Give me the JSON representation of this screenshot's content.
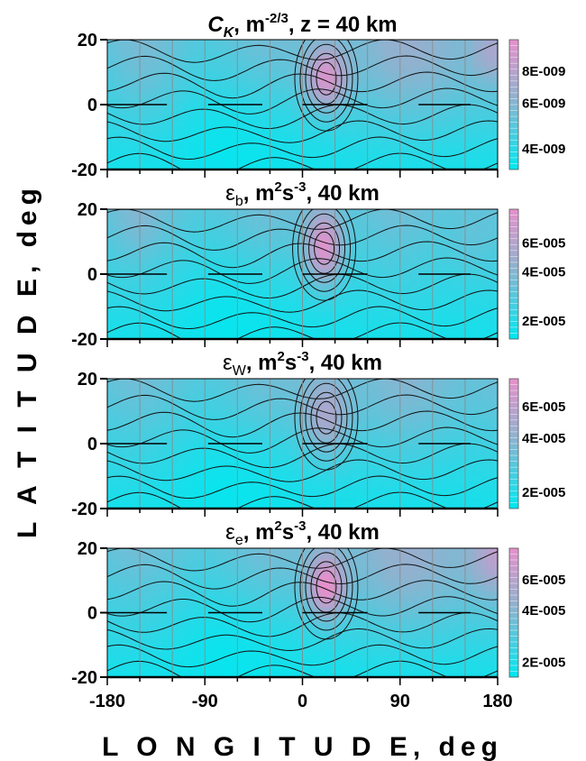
{
  "chart_data": [
    {
      "type": "heatmap",
      "title": "C_K, m^-2/3, z = 40 km",
      "title_parts": {
        "symbol": "C",
        "subscript": "K",
        "rest": ", m",
        "superscript": "-2/3",
        "tail": ", z = 40 km"
      },
      "xlabel": "L O N G I T U D E, deg",
      "ylabel": "L A T I T U D E, deg",
      "xlim": [
        -180,
        180
      ],
      "ylim": [
        -20,
        20
      ],
      "x_ticks": [
        "-180",
        "-90",
        "0",
        "90",
        "180"
      ],
      "y_ticks": [
        "20",
        "0",
        "-20"
      ],
      "colorbar": {
        "min": 4e-09,
        "max": 8.8e-09,
        "tick_values": [
          8e-09,
          6e-09,
          4e-09
        ],
        "tick_labels": [
          "8E-009",
          "6E-009",
          "4E-009"
        ]
      },
      "maximum": {
        "lon": 22,
        "lat": 8
      }
    },
    {
      "type": "heatmap",
      "title": "εb, m2s-3, 40 km",
      "title_parts": {
        "symbol": "ε",
        "subscript": "b",
        "rest": ", m",
        "superscript": "2",
        "mid": "s",
        "superscript2": "-3",
        "tail": ", 40 km"
      },
      "xlim": [
        -180,
        180
      ],
      "ylim": [
        -20,
        20
      ],
      "y_ticks": [
        "20",
        "0",
        "-20"
      ],
      "colorbar": {
        "min": 2e-05,
        "max": 7.5e-05,
        "tick_values": [
          6e-05,
          4e-05,
          2e-05
        ],
        "tick_labels": [
          "6E-005",
          "4E-005",
          "2E-005"
        ]
      },
      "maximum": {
        "lon": 20,
        "lat": 8
      }
    },
    {
      "type": "heatmap",
      "title": "εW, m2s-3, 40 km",
      "title_parts": {
        "symbol": "ε",
        "subscript": "W",
        "rest": ", m",
        "superscript": "2",
        "mid": "s",
        "superscript2": "-3",
        "tail": ", 40 km"
      },
      "xlim": [
        -180,
        180
      ],
      "ylim": [
        -20,
        20
      ],
      "y_ticks": [
        "20",
        "0",
        "-20"
      ],
      "colorbar": {
        "min": 2e-05,
        "max": 7e-05,
        "tick_values": [
          6e-05,
          4e-05,
          2e-05
        ],
        "tick_labels": [
          "6E-005",
          "4E-005",
          "2E-005"
        ]
      },
      "maximum": {
        "lon": 22,
        "lat": 8
      }
    },
    {
      "type": "heatmap",
      "title": "εe, m2s-3, 40 km",
      "title_parts": {
        "symbol": "ε",
        "subscript": "e",
        "rest": ", m",
        "superscript": "2",
        "mid": "s",
        "superscript2": "-3",
        "tail": ", 40 km"
      },
      "xlim": [
        -180,
        180
      ],
      "ylim": [
        -20,
        20
      ],
      "y_ticks": [
        "20",
        "0",
        "-20"
      ],
      "colorbar": {
        "min": 2e-05,
        "max": 7.5e-05,
        "tick_values": [
          6e-05,
          4e-05,
          2e-05
        ],
        "tick_labels": [
          "6E-005",
          "4E-005",
          "2E-005"
        ]
      },
      "maximum": {
        "lon": 22,
        "lat": 8
      }
    }
  ],
  "colors": {
    "low": "#00e8f0",
    "mid": "#8fb2cf",
    "high": "#e78fcb",
    "contour": "#111111",
    "gridline": "#888888"
  }
}
